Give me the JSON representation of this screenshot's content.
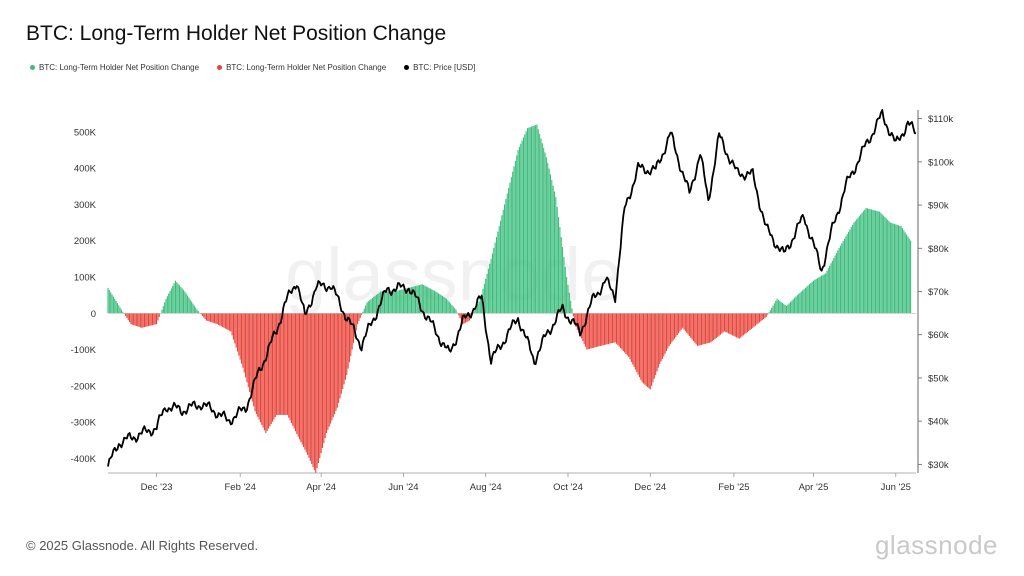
{
  "header": {
    "title": "BTC: Long-Term Holder Net Position Change"
  },
  "legend": {
    "items": [
      {
        "label": "BTC: Long-Term Holder Net Position Change",
        "color": "#3dbd7d"
      },
      {
        "label": "BTC: Long-Term Holder Net Position Change",
        "color": "#e8443a"
      },
      {
        "label": "BTC: Price [USD]",
        "color": "#000000"
      }
    ]
  },
  "footer": {
    "copyright": "© 2025 Glassnode. All Rights Reserved.",
    "brand": "glassnode"
  },
  "chart_data": {
    "type": "bar",
    "title": "BTC: Long-Term Holder Net Position Change",
    "x_ticks": [
      "Dec '23",
      "Feb '24",
      "Apr '24",
      "Jun '24",
      "Aug '24",
      "Oct '24",
      "Dec '24",
      "Feb '25",
      "Apr '25",
      "Jun '25"
    ],
    "y_left_ticks": [
      "500K",
      "400K",
      "300K",
      "200K",
      "100K",
      "0",
      "-100K",
      "-200K",
      "-300K",
      "-400K"
    ],
    "y_left_lim": [
      -440000,
      560000
    ],
    "y_right_ticks": [
      "$110k",
      "$100k",
      "$90k",
      "$80k",
      "$70k",
      "$60k",
      "$50k",
      "$40k",
      "$30k"
    ],
    "y_right_lim": [
      28000,
      112000
    ],
    "grid": false,
    "legend_position": "top-left",
    "series": [
      {
        "name": "BTC: Long-Term Holder Net Position Change",
        "kind": "bars",
        "positive_color": "#3dbd7d",
        "negative_color": "#e8443a",
        "points": [
          [
            "2023-10-26",
            70000
          ],
          [
            "2023-11-05",
            10000
          ],
          [
            "2023-11-12",
            -30000
          ],
          [
            "2023-11-20",
            -40000
          ],
          [
            "2023-12-01",
            -30000
          ],
          [
            "2023-12-08",
            40000
          ],
          [
            "2023-12-15",
            90000
          ],
          [
            "2023-12-22",
            60000
          ],
          [
            "2023-12-31",
            10000
          ],
          [
            "2024-01-07",
            -20000
          ],
          [
            "2024-01-15",
            -30000
          ],
          [
            "2024-01-25",
            -50000
          ],
          [
            "2024-02-03",
            -150000
          ],
          [
            "2024-02-12",
            -270000
          ],
          [
            "2024-02-20",
            -330000
          ],
          [
            "2024-02-28",
            -280000
          ],
          [
            "2024-03-07",
            -280000
          ],
          [
            "2024-03-15",
            -340000
          ],
          [
            "2024-03-22",
            -390000
          ],
          [
            "2024-03-28",
            -440000
          ],
          [
            "2024-04-05",
            -330000
          ],
          [
            "2024-04-13",
            -260000
          ],
          [
            "2024-04-20",
            -170000
          ],
          [
            "2024-04-28",
            -30000
          ],
          [
            "2024-05-05",
            30000
          ],
          [
            "2024-05-15",
            60000
          ],
          [
            "2024-05-25",
            60000
          ],
          [
            "2024-06-05",
            70000
          ],
          [
            "2024-06-15",
            80000
          ],
          [
            "2024-06-25",
            60000
          ],
          [
            "2024-07-03",
            40000
          ],
          [
            "2024-07-10",
            10000
          ],
          [
            "2024-07-15",
            -30000
          ],
          [
            "2024-07-20",
            -20000
          ],
          [
            "2024-07-28",
            40000
          ],
          [
            "2024-08-05",
            150000
          ],
          [
            "2024-08-15",
            300000
          ],
          [
            "2024-08-25",
            450000
          ],
          [
            "2024-09-01",
            510000
          ],
          [
            "2024-09-08",
            520000
          ],
          [
            "2024-09-15",
            430000
          ],
          [
            "2024-09-22",
            320000
          ],
          [
            "2024-09-30",
            100000
          ],
          [
            "2024-10-06",
            -30000
          ],
          [
            "2024-10-15",
            -100000
          ],
          [
            "2024-10-25",
            -90000
          ],
          [
            "2024-11-05",
            -80000
          ],
          [
            "2024-11-15",
            -120000
          ],
          [
            "2024-11-25",
            -190000
          ],
          [
            "2024-12-01",
            -210000
          ],
          [
            "2024-12-08",
            -140000
          ],
          [
            "2024-12-15",
            -90000
          ],
          [
            "2024-12-25",
            -40000
          ],
          [
            "2025-01-05",
            -90000
          ],
          [
            "2025-01-15",
            -80000
          ],
          [
            "2025-01-25",
            -50000
          ],
          [
            "2025-02-05",
            -70000
          ],
          [
            "2025-02-15",
            -40000
          ],
          [
            "2025-02-25",
            -10000
          ],
          [
            "2025-03-05",
            40000
          ],
          [
            "2025-03-12",
            20000
          ],
          [
            "2025-03-20",
            50000
          ],
          [
            "2025-04-01",
            90000
          ],
          [
            "2025-04-10",
            110000
          ],
          [
            "2025-04-20",
            180000
          ],
          [
            "2025-05-01",
            250000
          ],
          [
            "2025-05-10",
            290000
          ],
          [
            "2025-05-20",
            280000
          ],
          [
            "2025-05-28",
            250000
          ],
          [
            "2025-06-05",
            240000
          ],
          [
            "2025-06-12",
            200000
          ]
        ]
      },
      {
        "name": "BTC: Price [USD]",
        "kind": "line",
        "color": "#000000",
        "points": [
          [
            "2023-10-26",
            29500
          ],
          [
            "2023-11-03",
            35000
          ],
          [
            "2023-11-15",
            36500
          ],
          [
            "2023-12-01",
            38500
          ],
          [
            "2023-12-08",
            43500
          ],
          [
            "2023-12-20",
            42500
          ],
          [
            "2024-01-03",
            44000
          ],
          [
            "2024-01-15",
            42000
          ],
          [
            "2024-01-23",
            40000
          ],
          [
            "2024-02-05",
            43000
          ],
          [
            "2024-02-15",
            51500
          ],
          [
            "2024-02-28",
            61000
          ],
          [
            "2024-03-05",
            67000
          ],
          [
            "2024-03-14",
            72500
          ],
          [
            "2024-03-20",
            64000
          ],
          [
            "2024-03-28",
            71000
          ],
          [
            "2024-04-08",
            71500
          ],
          [
            "2024-04-20",
            64000
          ],
          [
            "2024-05-01",
            57500
          ],
          [
            "2024-05-08",
            62500
          ],
          [
            "2024-05-20",
            70500
          ],
          [
            "2024-06-05",
            71000
          ],
          [
            "2024-06-15",
            66000
          ],
          [
            "2024-07-05",
            55500
          ],
          [
            "2024-07-15",
            63000
          ],
          [
            "2024-07-29",
            68500
          ],
          [
            "2024-08-05",
            54000
          ],
          [
            "2024-08-25",
            64000
          ],
          [
            "2024-09-06",
            54000
          ],
          [
            "2024-09-15",
            60000
          ],
          [
            "2024-09-27",
            66000
          ],
          [
            "2024-10-10",
            60500
          ],
          [
            "2024-10-20",
            68500
          ],
          [
            "2024-10-29",
            72500
          ],
          [
            "2024-11-05",
            69000
          ],
          [
            "2024-11-12",
            89000
          ],
          [
            "2024-11-22",
            98500
          ],
          [
            "2024-12-05",
            98000
          ],
          [
            "2024-12-16",
            106500
          ],
          [
            "2024-12-30",
            92500
          ],
          [
            "2025-01-07",
            102000
          ],
          [
            "2025-01-13",
            91000
          ],
          [
            "2025-01-21",
            106000
          ],
          [
            "2025-02-03",
            97500
          ],
          [
            "2025-02-15",
            97000
          ],
          [
            "2025-02-25",
            84500
          ],
          [
            "2025-03-10",
            78500
          ],
          [
            "2025-03-25",
            87500
          ],
          [
            "2025-04-07",
            75000
          ],
          [
            "2025-04-15",
            84500
          ],
          [
            "2025-04-25",
            94500
          ],
          [
            "2025-05-10",
            104000
          ],
          [
            "2025-05-22",
            111000
          ],
          [
            "2025-06-01",
            104000
          ],
          [
            "2025-06-10",
            109000
          ],
          [
            "2025-06-16",
            106500
          ]
        ]
      }
    ]
  }
}
